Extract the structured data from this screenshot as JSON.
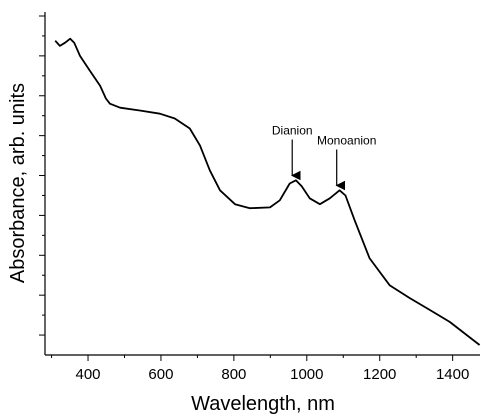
{
  "chart_data": {
    "type": "line",
    "xlabel": "Wavelength, nm",
    "ylabel": "Absorbance, arb. units",
    "x": [
      310,
      323,
      337,
      351,
      362,
      378,
      405,
      433,
      449,
      460,
      488,
      542,
      597,
      638,
      679,
      707,
      734,
      762,
      803,
      844,
      899,
      926,
      953,
      970,
      986,
      1008,
      1036,
      1063,
      1090,
      1106,
      1131,
      1172,
      1227,
      1282,
      1337,
      1392,
      1446,
      1474
    ],
    "y": [
      7.88,
      7.75,
      7.83,
      7.93,
      7.83,
      7.5,
      7.13,
      6.75,
      6.43,
      6.3,
      6.2,
      6.13,
      6.05,
      5.93,
      5.68,
      5.25,
      4.63,
      4.13,
      3.78,
      3.68,
      3.7,
      3.88,
      4.3,
      4.38,
      4.23,
      3.93,
      3.78,
      3.93,
      4.13,
      4.0,
      3.38,
      2.43,
      1.75,
      1.43,
      1.13,
      0.83,
      0.45,
      0.25
    ],
    "color": "#000000",
    "xlim": [
      282,
      1475
    ],
    "xticks": [
      400,
      600,
      800,
      1000,
      1200,
      1400
    ],
    "x_minor_ticks": [
      300,
      500,
      700,
      900,
      1100,
      1300
    ],
    "ylim": [
      0,
      8.6
    ],
    "yticks": [
      0.5,
      1.5,
      2.5,
      3.5,
      4.5,
      5.5,
      6.5,
      7.5,
      8.5
    ],
    "y_minor_ticks": [
      1,
      2,
      3,
      4,
      5,
      6,
      7,
      8
    ],
    "y_tick_labels": false,
    "annotations": [
      {
        "text": "Dianion",
        "x": 960,
        "y": 4.4
      },
      {
        "text": "Monoanion",
        "x": 1082,
        "y": 4.15
      }
    ]
  }
}
